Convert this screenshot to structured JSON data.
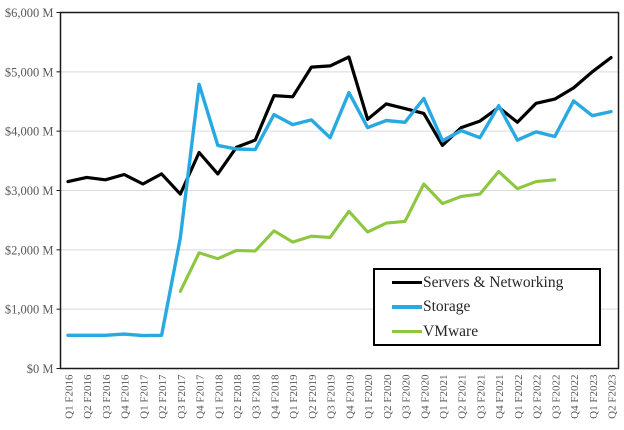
{
  "chart_data": {
    "type": "line",
    "title": "",
    "xlabel": "",
    "ylabel": "",
    "categories": [
      "Q1 F2016",
      "Q2 F2016",
      "Q3 F2016",
      "Q4 F2016",
      "Q1 F2017",
      "Q2 F2017",
      "Q3 F2017",
      "Q4 F2017",
      "Q1 F2018",
      "Q2 F2018",
      "Q3 F2018",
      "Q4 F2018",
      "Q1 F2019",
      "Q2 F2019",
      "Q3 F2019",
      "Q4 F2019",
      "Q1 F2020",
      "Q2 F2020",
      "Q3 F2020",
      "Q4 F2020",
      "Q1 F2021",
      "Q2 F2021",
      "Q3 F2021",
      "Q4 F2021",
      "Q1 F2022",
      "Q2 F2022",
      "Q3 F2022",
      "Q4 F2022",
      "Q1 F2023",
      "Q2 F2023"
    ],
    "series": [
      {
        "name": "Servers & Networking",
        "color": "#000000",
        "stroke_width": 3.2,
        "values": [
          3150,
          3220,
          3180,
          3270,
          3110,
          3280,
          2940,
          3640,
          3280,
          3730,
          3850,
          4600,
          4580,
          5080,
          5100,
          5250,
          4200,
          4460,
          4380,
          4300,
          3760,
          4060,
          4170,
          4400,
          4150,
          4470,
          4540,
          4730,
          5000,
          5240
        ]
      },
      {
        "name": "Storage",
        "color": "#29a9e1",
        "stroke_width": 3.4,
        "values": [
          560,
          560,
          560,
          580,
          555,
          560,
          2200,
          4790,
          3760,
          3700,
          3690,
          4280,
          4110,
          4190,
          3890,
          4650,
          4060,
          4180,
          4150,
          4550,
          3840,
          4010,
          3890,
          4430,
          3850,
          3990,
          3910,
          4510,
          4260,
          4330
        ]
      },
      {
        "name": "VMware",
        "color": "#8dc63f",
        "stroke_width": 3.1,
        "values": [
          null,
          null,
          null,
          null,
          null,
          null,
          1300,
          1950,
          1850,
          1990,
          1980,
          2320,
          2130,
          2230,
          2210,
          2650,
          2300,
          2450,
          2480,
          3110,
          2780,
          2900,
          2940,
          3320,
          3030,
          3150,
          3180,
          null,
          null,
          null
        ]
      }
    ],
    "ylim": [
      0,
      6000
    ],
    "y_tick_values": [
      0,
      1000,
      2000,
      3000,
      4000,
      5000,
      6000
    ],
    "y_tick_labels": [
      "$0 M",
      "$1,000 M",
      "$2,000 M",
      "$3,000 M",
      "$4,000 M",
      "$5,000 M",
      "$6,000 M"
    ],
    "grid": true,
    "gridline_color": "#d9d9d9",
    "axis_label_color": "#595959",
    "plot_border_color": "#1a1a1a",
    "legend_position": "inside-bottom-right"
  }
}
